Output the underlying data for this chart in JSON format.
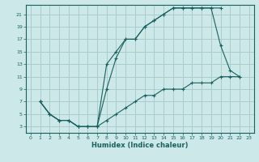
{
  "xlabel": "Humidex (Indice chaleur)",
  "bg_color": "#cce8e8",
  "grid_color": "#aacccc",
  "line_color": "#1a6060",
  "xlim": [
    -0.5,
    23.5
  ],
  "ylim": [
    2,
    22.5
  ],
  "xticks": [
    0,
    1,
    2,
    3,
    4,
    5,
    6,
    7,
    8,
    9,
    10,
    11,
    12,
    13,
    14,
    15,
    16,
    17,
    18,
    19,
    20,
    21,
    22,
    23
  ],
  "yticks": [
    3,
    5,
    7,
    9,
    11,
    13,
    15,
    17,
    19,
    21
  ],
  "curve1_x": [
    1,
    2,
    3,
    4,
    5,
    6,
    7,
    8,
    9,
    10,
    11,
    12,
    13,
    14,
    15,
    16,
    17,
    18,
    19,
    20
  ],
  "curve1_y": [
    7,
    5,
    4,
    4,
    3,
    3,
    3,
    9,
    14,
    17,
    17,
    19,
    20,
    21,
    22,
    22,
    22,
    22,
    22,
    22
  ],
  "curve2_x": [
    1,
    2,
    3,
    4,
    5,
    6,
    7,
    8,
    9,
    10,
    11,
    12,
    13,
    14,
    15,
    16,
    17,
    18,
    19,
    20,
    21,
    22
  ],
  "curve2_y": [
    7,
    5,
    4,
    4,
    3,
    3,
    3,
    13,
    15,
    17,
    17,
    19,
    20,
    21,
    22,
    22,
    22,
    22,
    22,
    16,
    12,
    11
  ],
  "curve3_x": [
    1,
    2,
    3,
    4,
    5,
    6,
    7,
    8,
    9,
    10,
    11,
    12,
    13,
    14,
    15,
    16,
    17,
    18,
    19,
    20,
    21,
    22
  ],
  "curve3_y": [
    7,
    5,
    4,
    4,
    3,
    3,
    3,
    4,
    5,
    6,
    7,
    8,
    8,
    9,
    9,
    9,
    10,
    10,
    10,
    11,
    11,
    11
  ]
}
